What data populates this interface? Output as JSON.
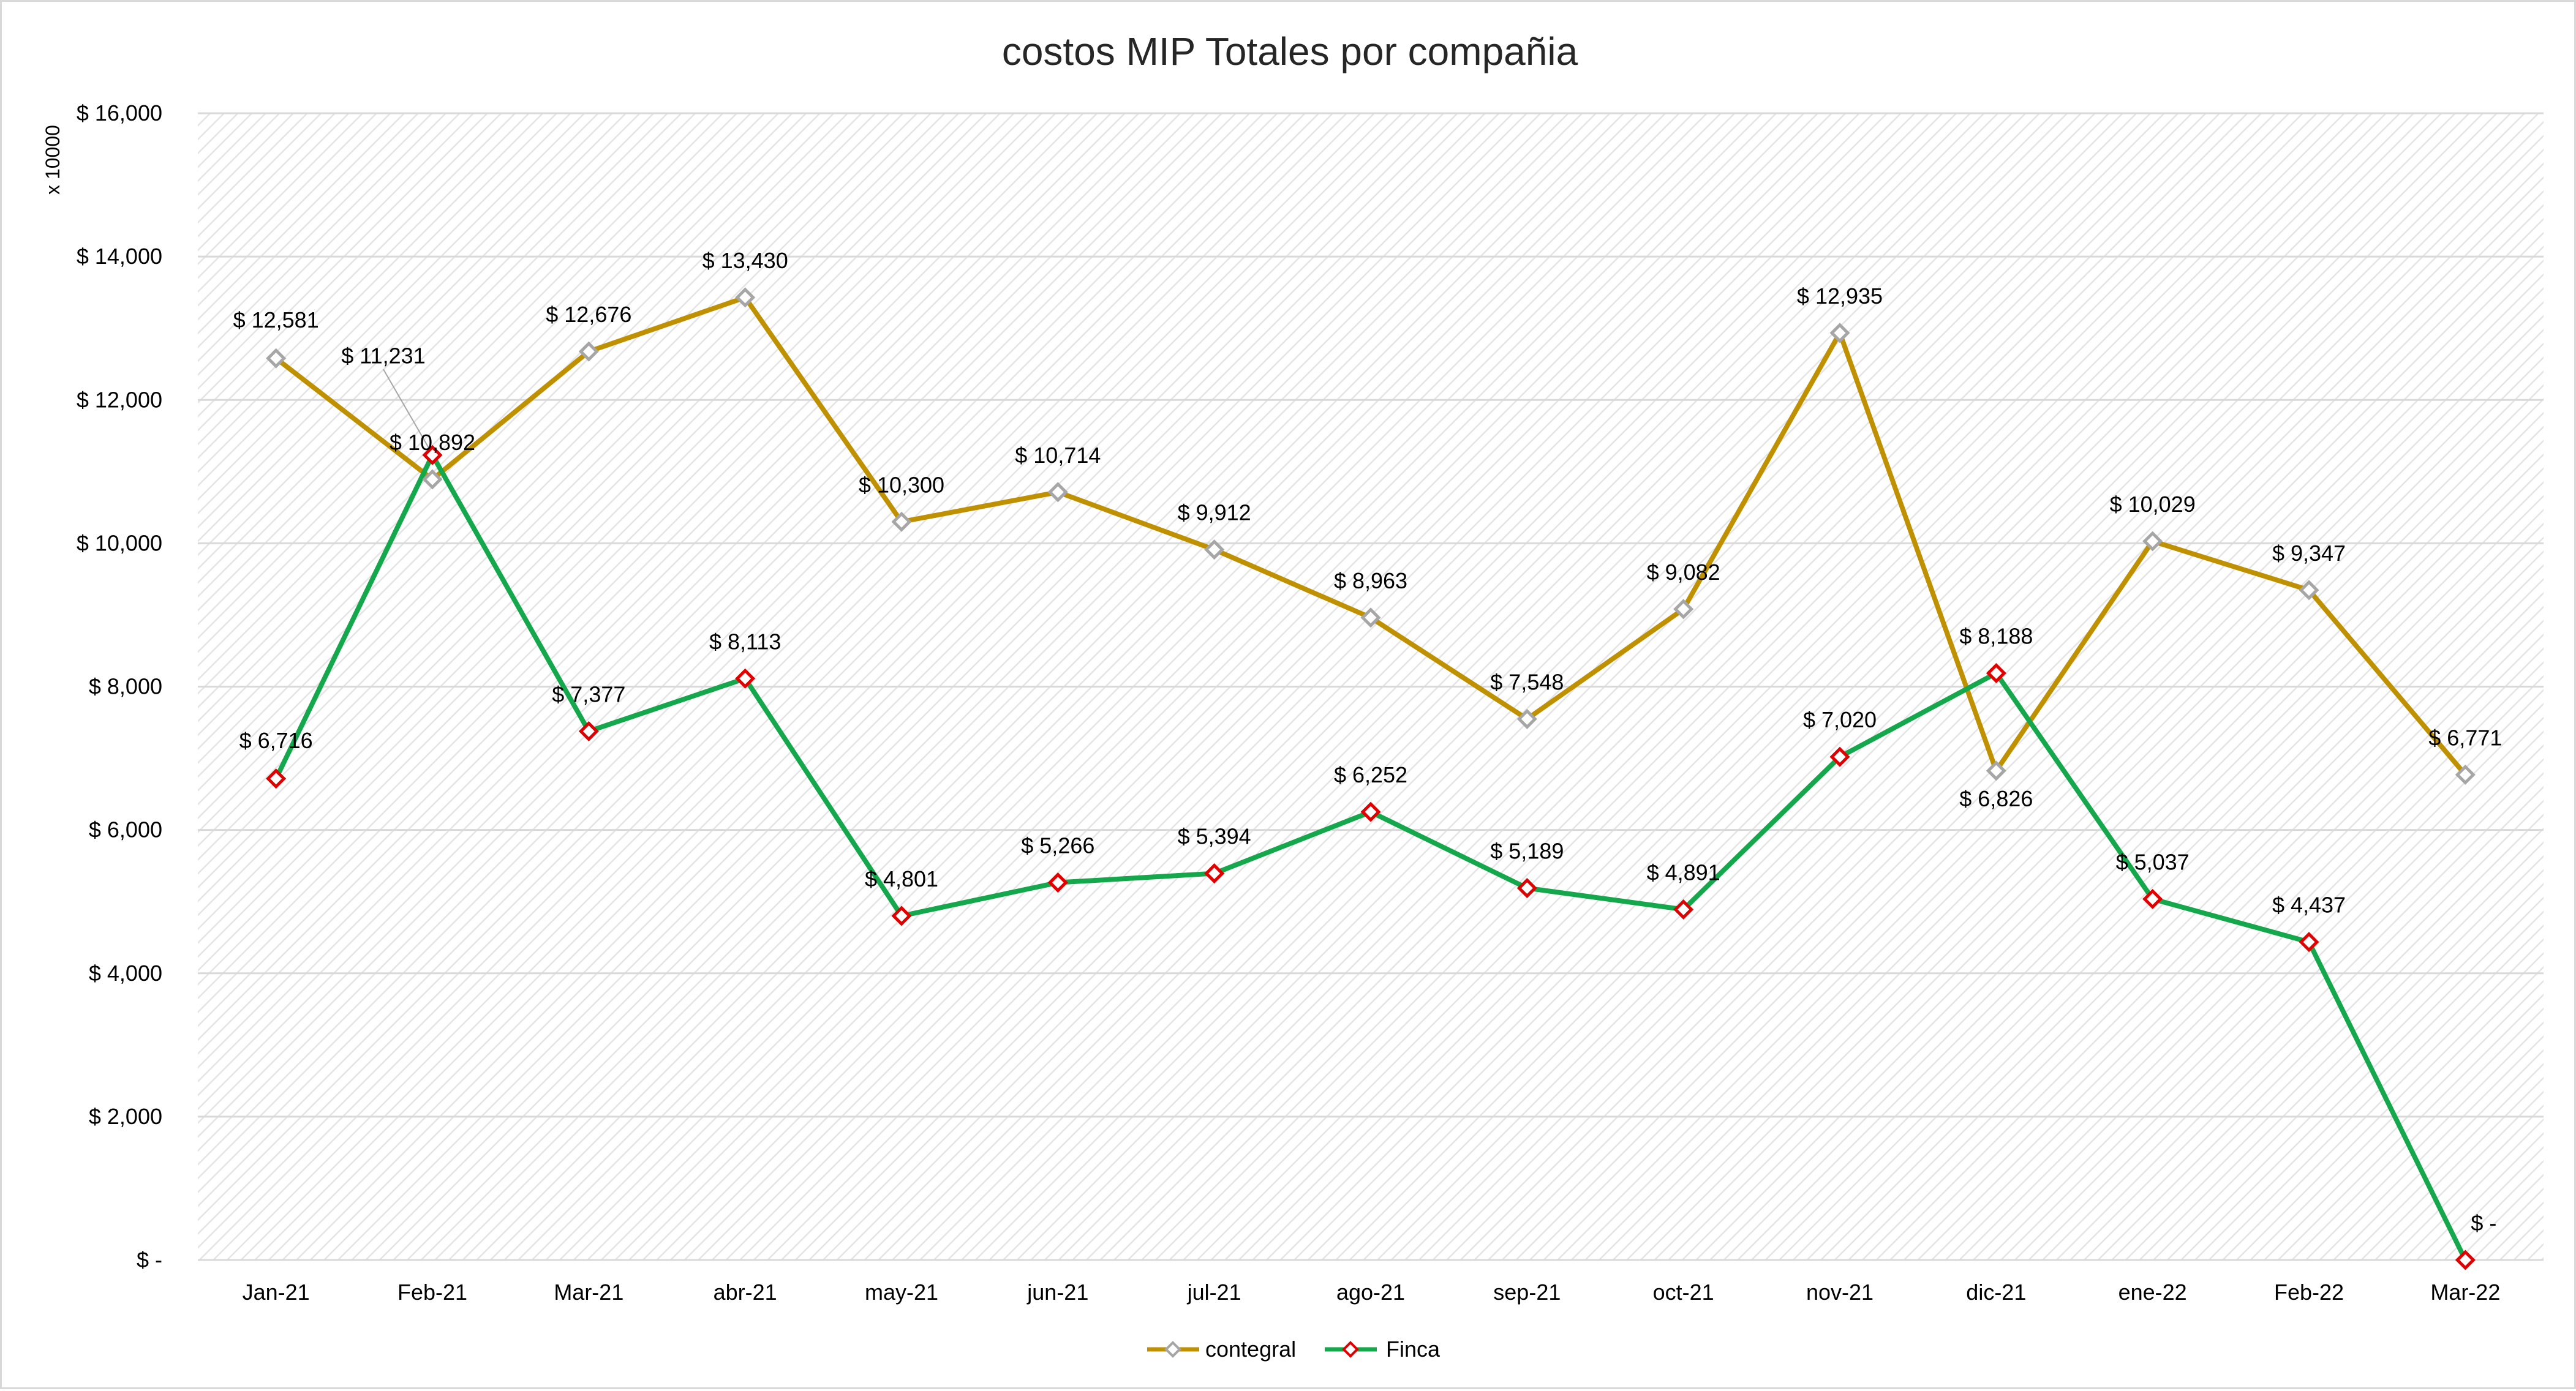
{
  "chart_data": {
    "type": "line",
    "title": "costos MIP  Totales por compañia",
    "ylabel": "x 10000",
    "xlabel": "",
    "ylim": [
      0,
      16000
    ],
    "yticks": [
      0,
      2000,
      4000,
      6000,
      8000,
      10000,
      12000,
      14000,
      16000
    ],
    "ytick_labels": [
      "$ -",
      "$ 2,000",
      "$ 4,000",
      "$ 6,000",
      "$ 8,000",
      "$ 10,000",
      "$ 12,000",
      "$ 14,000",
      "$ 16,000"
    ],
    "categories": [
      "Jan-21",
      "Feb-21",
      "Mar-21",
      "abr-21",
      "may-21",
      "jun-21",
      "jul-21",
      "ago-21",
      "sep-21",
      "oct-21",
      "nov-21",
      "dic-21",
      "ene-22",
      "Feb-22",
      "Mar-22"
    ],
    "series": [
      {
        "name": "contegral",
        "color": "#bf9000",
        "marker_color": "#a6a6a6",
        "values": [
          12581,
          10892,
          12676,
          13430,
          10300,
          10714,
          9912,
          8963,
          7548,
          9082,
          12935,
          6826,
          10029,
          9347,
          6771
        ],
        "labels": [
          "$ 12,581",
          "$ 10,892",
          "$ 12,676",
          "$ 13,430",
          "$ 10,300",
          "$ 10,714",
          "$ 9,912",
          "$ 8,963",
          "$ 7,548",
          "$ 9,082",
          "$ 12,935",
          "$ 6,826",
          "$ 10,029",
          "$ 9,347",
          "$ 6,771"
        ]
      },
      {
        "name": "Finca",
        "color": "#14a74b",
        "marker_color": "#e00000",
        "values": [
          6716,
          11231,
          7377,
          8113,
          4801,
          5266,
          5394,
          6252,
          5189,
          4891,
          7020,
          8188,
          5037,
          4437,
          0
        ],
        "labels": [
          "$ 6,716",
          "$ 11,231",
          "$ 7,377",
          "$ 8,113",
          "$ 4,801",
          "$ 5,266",
          "$ 5,394",
          "$ 6,252",
          "$ 5,189",
          "$ 4,891",
          "$ 7,020",
          "$ 8,188",
          "$ 5,037",
          "$ 4,437",
          "$ -"
        ]
      }
    ],
    "grid": true,
    "legend": "bottom"
  }
}
